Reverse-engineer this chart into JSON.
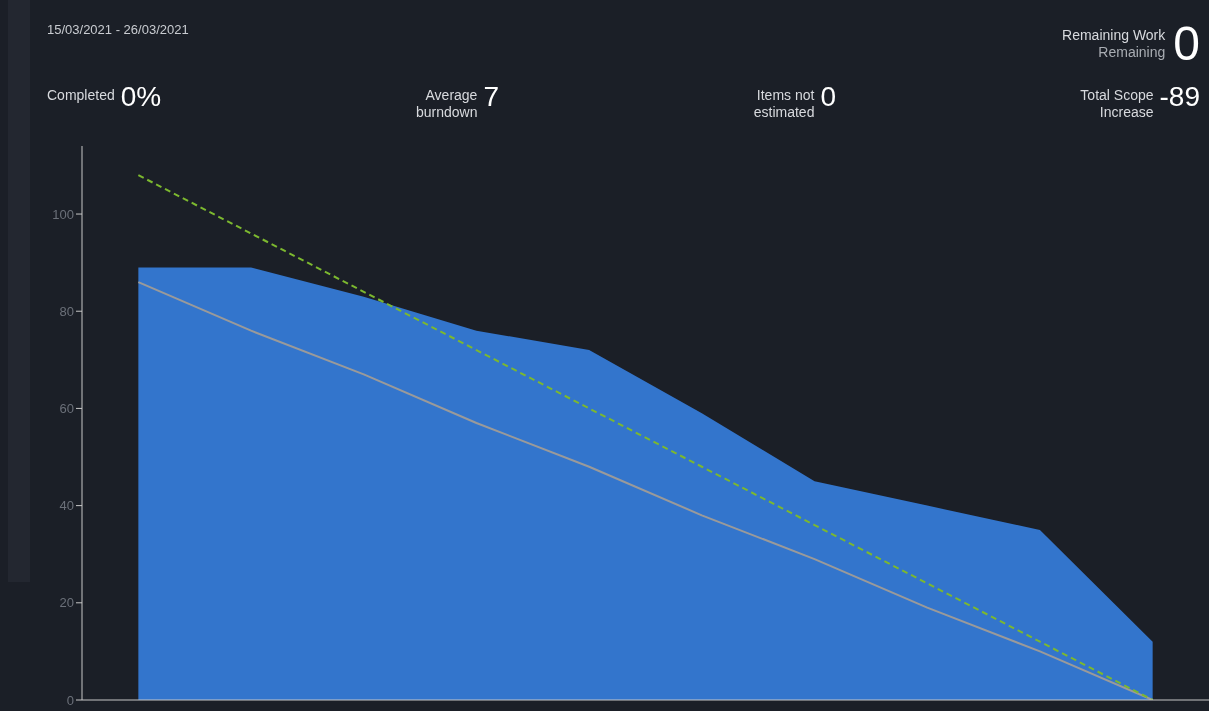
{
  "chart_data": {
    "type": "area",
    "subtitle": "15/03/2021 - 26/03/2021",
    "categories": [
      null,
      null,
      null,
      null,
      null,
      null,
      null,
      null,
      null,
      null
    ],
    "series": [
      {
        "color": "#3375cc",
        "values": [
          89,
          89,
          83,
          76,
          72,
          59,
          45,
          40,
          35,
          12
        ]
      },
      {
        "type": "line",
        "color": "#9a9a9a",
        "values": [
          86,
          76,
          67,
          57,
          48,
          38,
          29,
          19,
          10,
          0
        ]
      },
      {
        "type": "line",
        "color": "#7cb82f",
        "line_style": "dashed",
        "values": [
          108,
          96,
          84,
          72,
          60,
          48,
          36,
          24,
          12,
          0
        ]
      }
    ],
    "ylim": [
      0,
      114
    ],
    "yticks": [
      0,
      20,
      40,
      60,
      80,
      100
    ],
    "tick_labels": "y",
    "annotations": [
      "Remaining Work",
      "Remaining",
      "0",
      "Completed",
      "0%",
      "Average burndown",
      "7",
      "Items not estimated",
      "0",
      "Total Scope Increase",
      "-89"
    ]
  }
}
